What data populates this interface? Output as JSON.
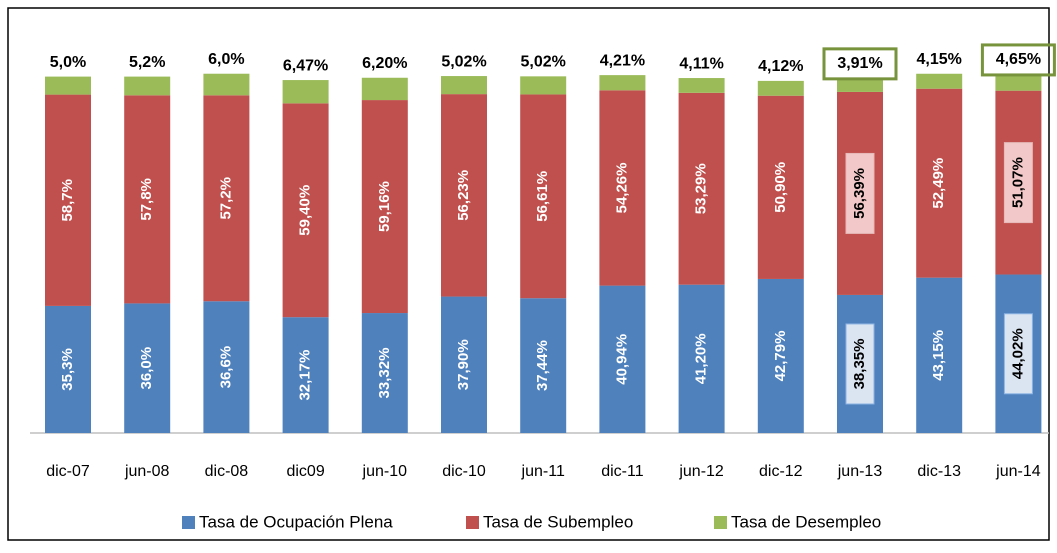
{
  "chart_data": {
    "type": "stacked_bar",
    "categories": [
      "dic-07",
      "jun-08",
      "dic-08",
      "dic09",
      "jun-10",
      "dic-10",
      "jun-11",
      "dic-11",
      "jun-12",
      "dic-12",
      "jun-13",
      "dic-13",
      "jun-14"
    ],
    "series": [
      {
        "name": "Tasa de Ocupación Plena",
        "color": "#4f81bd",
        "values": [
          35.3,
          36.0,
          36.6,
          32.17,
          33.32,
          37.9,
          37.44,
          40.94,
          41.2,
          42.79,
          38.35,
          43.15,
          44.02
        ],
        "value_labels": [
          "35,3%",
          "36,0%",
          "36,6%",
          "32,17%",
          "33,32%",
          "37,90%",
          "37,44%",
          "40,94%",
          "41,20%",
          "42,79%",
          "38,35%",
          "43,15%",
          "44,02%"
        ]
      },
      {
        "name": "Tasa de Subempleo",
        "color": "#c0504d",
        "values": [
          58.7,
          57.8,
          57.2,
          59.4,
          59.16,
          56.23,
          56.61,
          54.26,
          53.29,
          50.9,
          56.39,
          52.49,
          51.07
        ],
        "value_labels": [
          "58,7%",
          "57,8%",
          "57,2%",
          "59,40%",
          "59,16%",
          "56,23%",
          "56,61%",
          "54,26%",
          "53,29%",
          "50,90%",
          "56,39%",
          "52,49%",
          "51,07%"
        ]
      },
      {
        "name": "Tasa de Desempleo",
        "color": "#9bbb59",
        "values": [
          5.0,
          5.2,
          6.0,
          6.47,
          6.2,
          5.02,
          5.02,
          4.21,
          4.11,
          4.12,
          3.91,
          4.15,
          4.65
        ],
        "value_labels": [
          "5,0%",
          "5,2%",
          "6,0%",
          "6,47%",
          "6,20%",
          "5,02%",
          "5,02%",
          "4,21%",
          "4,11%",
          "4,12%",
          "3,91%",
          "4,15%",
          "4,65%"
        ]
      }
    ],
    "highlighted": [
      false,
      false,
      false,
      false,
      false,
      false,
      false,
      false,
      false,
      false,
      true,
      false,
      true
    ]
  }
}
